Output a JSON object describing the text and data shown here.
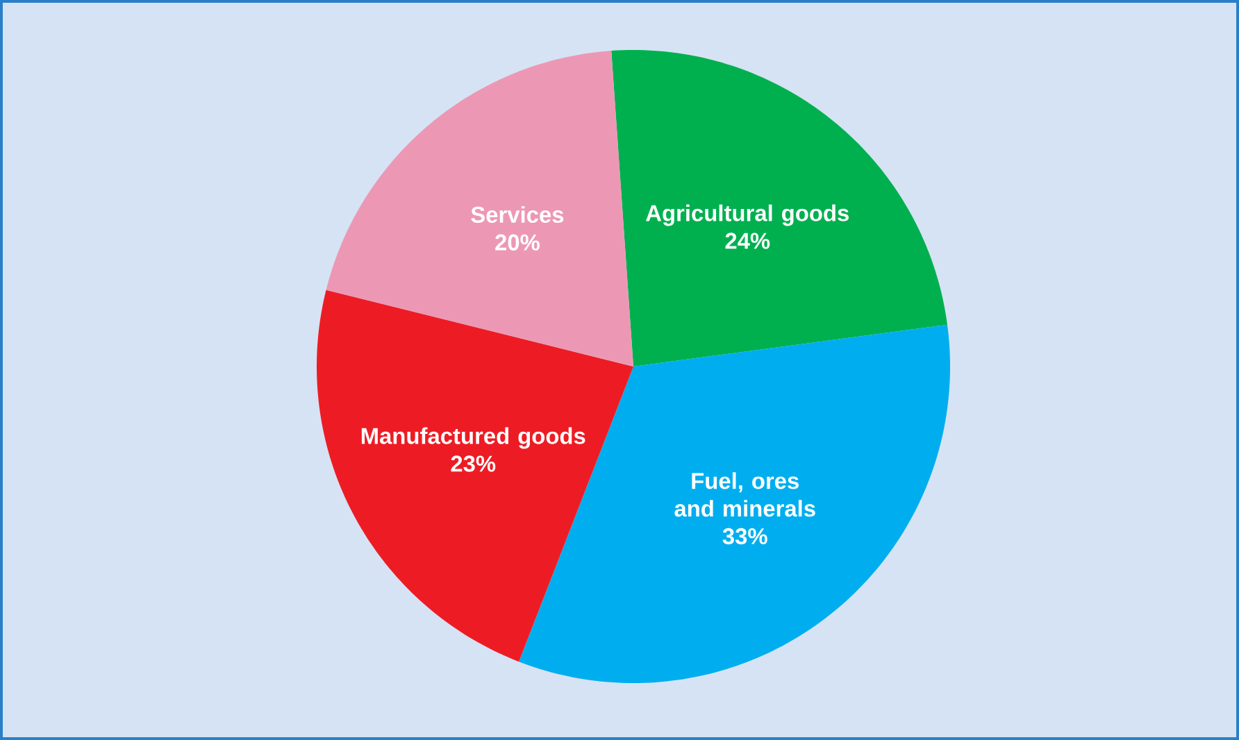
{
  "chart_data": {
    "type": "pie",
    "categories": [
      "Agricultural goods",
      "Fuel, ores and minerals",
      "Manufactured goods",
      "Services"
    ],
    "values": [
      24,
      33,
      23,
      20
    ],
    "value_labels": [
      "24%",
      "33%",
      "23%",
      "20%"
    ],
    "data_labels": true,
    "colors": [
      "#00b04f",
      "#00aeef",
      "#ed1c24",
      "#ec98b5"
    ]
  }
}
